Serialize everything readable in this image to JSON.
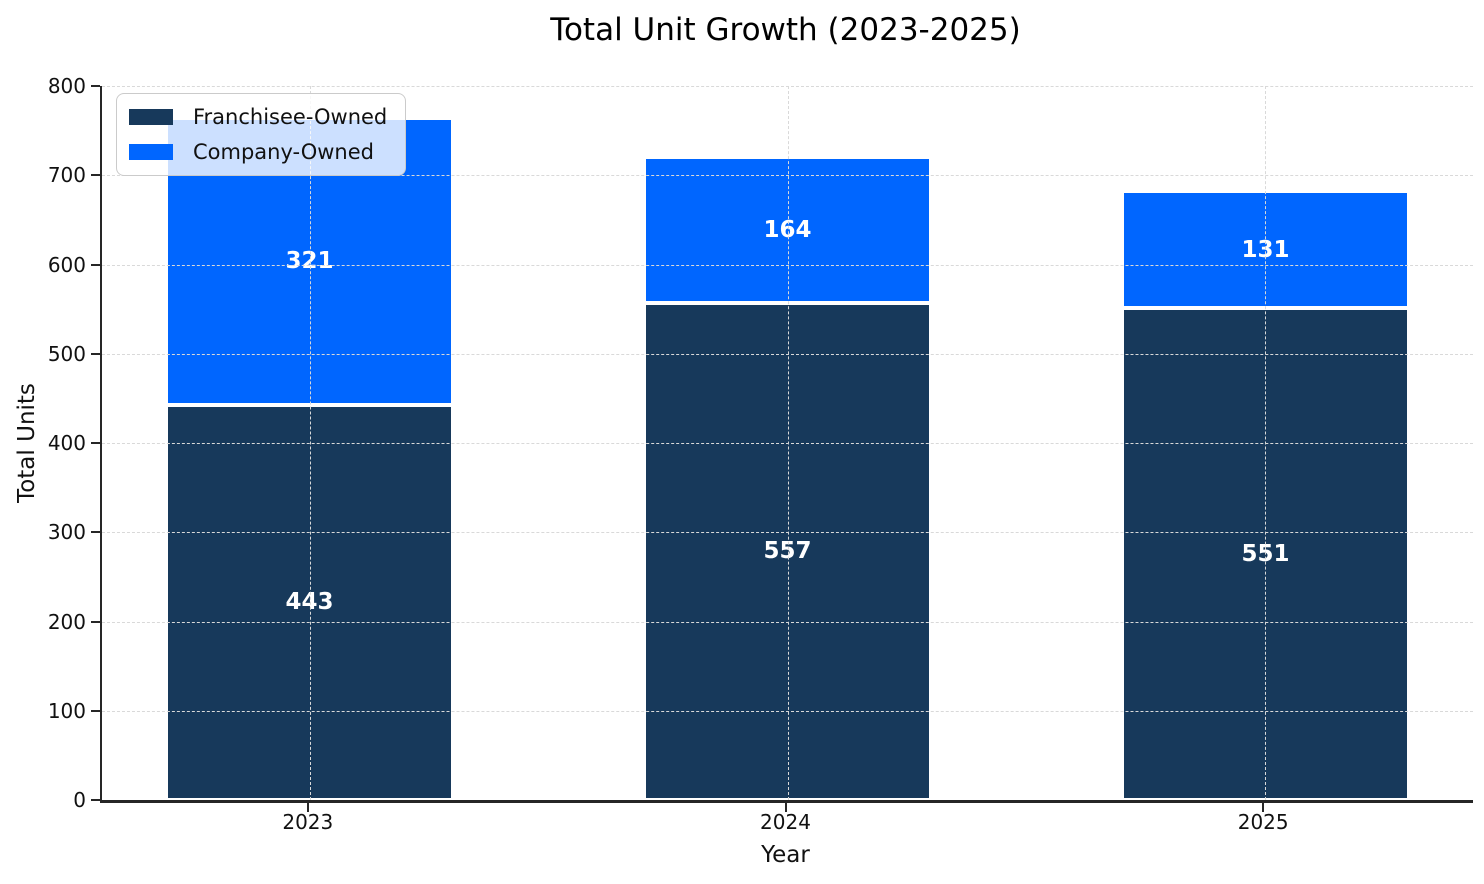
{
  "title": "Total Unit Growth (2023-2025)",
  "colors": {
    "franchisee_owned": "#17395B",
    "company_owned": "#0066FF",
    "bar_value_text": "#ffffff",
    "grid": "#d9d9d9",
    "axis": "#262626"
  },
  "chart_data": {
    "type": "bar",
    "stacked": true,
    "title": "Total Unit Growth (2023-2025)",
    "xlabel": "Year",
    "ylabel": "Total Units",
    "categories": [
      "2023",
      "2024",
      "2025"
    ],
    "series": [
      {
        "name": "Franchisee-Owned",
        "color": "#17395B",
        "values": [
          443,
          557,
          551
        ]
      },
      {
        "name": "Company-Owned",
        "color": "#0066FF",
        "values": [
          321,
          164,
          131
        ]
      }
    ],
    "totals": [
      764,
      721,
      682
    ],
    "ylim": [
      0,
      800
    ],
    "yticks": [
      0,
      100,
      200,
      300,
      400,
      500,
      600,
      700,
      800
    ],
    "grid": true,
    "grid_style": "dashed",
    "grid_above_bars": true,
    "legend_position": "upper-left",
    "bar_value_labels": [
      "443",
      "557",
      "551",
      "321",
      "164",
      "131"
    ]
  }
}
